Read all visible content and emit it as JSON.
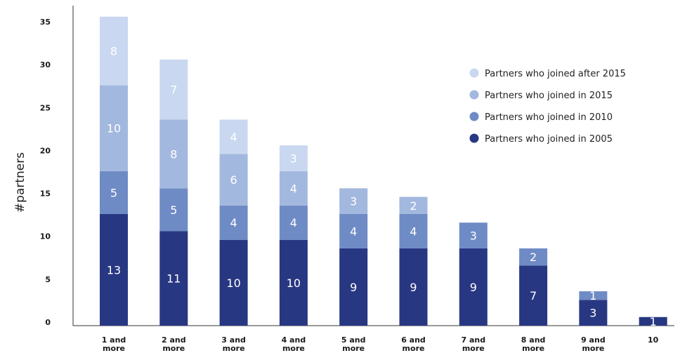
{
  "chart_data": {
    "type": "bar",
    "stacked": true,
    "title": "",
    "xlabel": "",
    "ylabel": "#partners",
    "ylim": [
      0,
      37
    ],
    "yticks": [
      0,
      5,
      10,
      15,
      20,
      25,
      30,
      35
    ],
    "grid": false,
    "legend_position": "top-right",
    "categories": [
      [
        "1 and",
        "more"
      ],
      [
        "2 and",
        "more"
      ],
      [
        "3 and",
        "more"
      ],
      [
        "4 and",
        "more"
      ],
      [
        "5 and",
        "more"
      ],
      [
        "6 and",
        "more"
      ],
      [
        "7 and",
        "more"
      ],
      [
        "8 and",
        "more"
      ],
      [
        "9 and",
        "more"
      ],
      [
        "10"
      ]
    ],
    "series": [
      {
        "name": "Partners who joined in 2005",
        "color": "#283782",
        "values": [
          13,
          11,
          10,
          10,
          9,
          9,
          9,
          7,
          3,
          1
        ]
      },
      {
        "name": "Partners who joined in 2010",
        "color": "#6f8bc5",
        "values": [
          5,
          5,
          4,
          4,
          4,
          4,
          3,
          2,
          1,
          0
        ]
      },
      {
        "name": "Partners who joined in 2015",
        "color": "#a3b8de",
        "values": [
          10,
          8,
          6,
          4,
          3,
          2,
          0,
          0,
          0,
          0
        ]
      },
      {
        "name": "Partners who joined after 2015",
        "color": "#c9d8f0",
        "values": [
          8,
          7,
          4,
          3,
          0,
          0,
          0,
          0,
          0,
          0
        ]
      }
    ],
    "legend_order": [
      3,
      2,
      1,
      0
    ]
  }
}
